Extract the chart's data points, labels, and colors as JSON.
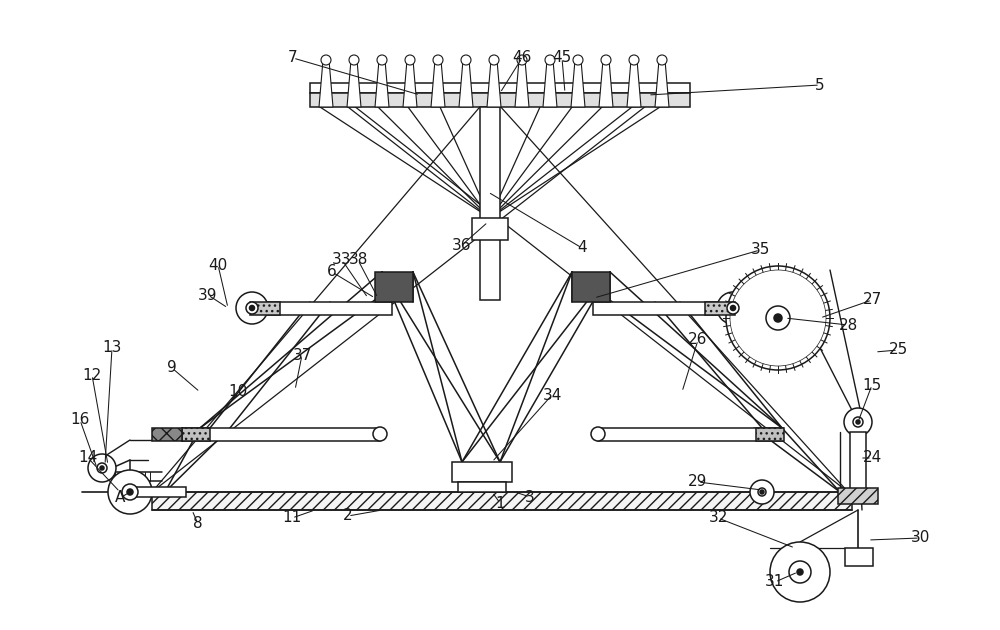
{
  "bg": "#ffffff",
  "lc": "#1a1a1a",
  "lw": 1.1,
  "fw": 10.0,
  "fh": 6.3,
  "dpi": 100,
  "labels": [
    [
      "1",
      500,
      503
    ],
    [
      "2",
      348,
      516
    ],
    [
      "3",
      530,
      497
    ],
    [
      "4",
      582,
      248
    ],
    [
      "5",
      820,
      85
    ],
    [
      "6",
      332,
      272
    ],
    [
      "7",
      293,
      58
    ],
    [
      "8",
      198,
      524
    ],
    [
      "9",
      172,
      368
    ],
    [
      "10",
      238,
      392
    ],
    [
      "11",
      292,
      518
    ],
    [
      "12",
      92,
      375
    ],
    [
      "13",
      112,
      348
    ],
    [
      "14",
      88,
      458
    ],
    [
      "15",
      872,
      385
    ],
    [
      "16",
      80,
      420
    ],
    [
      "24",
      872,
      458
    ],
    [
      "25",
      898,
      350
    ],
    [
      "26",
      698,
      340
    ],
    [
      "27",
      872,
      300
    ],
    [
      "28",
      848,
      325
    ],
    [
      "29",
      698,
      482
    ],
    [
      "30",
      920,
      538
    ],
    [
      "31",
      775,
      582
    ],
    [
      "32",
      718,
      518
    ],
    [
      "33",
      342,
      260
    ],
    [
      "34",
      552,
      395
    ],
    [
      "35",
      760,
      250
    ],
    [
      "36",
      462,
      245
    ],
    [
      "37",
      302,
      355
    ],
    [
      "38",
      358,
      260
    ],
    [
      "39",
      208,
      295
    ],
    [
      "40",
      218,
      265
    ],
    [
      "45",
      562,
      58
    ],
    [
      "46",
      522,
      58
    ],
    [
      "A",
      120,
      498
    ]
  ],
  "leaders": [
    [
      [
        293,
        58
      ],
      [
        420,
        95
      ]
    ],
    [
      [
        820,
        85
      ],
      [
        648,
        95
      ]
    ],
    [
      [
        562,
        58
      ],
      [
        565,
        93
      ]
    ],
    [
      [
        522,
        58
      ],
      [
        500,
        93
      ]
    ],
    [
      [
        582,
        248
      ],
      [
        488,
        192
      ]
    ],
    [
      [
        462,
        245
      ],
      [
        488,
        222
      ]
    ],
    [
      [
        332,
        272
      ],
      [
        375,
        298
      ]
    ],
    [
      [
        342,
        260
      ],
      [
        368,
        298
      ]
    ],
    [
      [
        358,
        260
      ],
      [
        378,
        298
      ]
    ],
    [
      [
        760,
        250
      ],
      [
        594,
        298
      ]
    ],
    [
      [
        208,
        295
      ],
      [
        228,
        308
      ]
    ],
    [
      [
        218,
        265
      ],
      [
        228,
        308
      ]
    ],
    [
      [
        172,
        368
      ],
      [
        200,
        392
      ]
    ],
    [
      [
        238,
        392
      ],
      [
        230,
        402
      ]
    ],
    [
      [
        302,
        355
      ],
      [
        295,
        390
      ]
    ],
    [
      [
        698,
        340
      ],
      [
        682,
        392
      ]
    ],
    [
      [
        872,
        300
      ],
      [
        820,
        318
      ]
    ],
    [
      [
        848,
        325
      ],
      [
        785,
        318
      ]
    ],
    [
      [
        872,
        385
      ],
      [
        858,
        422
      ]
    ],
    [
      [
        872,
        458
      ],
      [
        860,
        458
      ]
    ],
    [
      [
        898,
        350
      ],
      [
        875,
        352
      ]
    ],
    [
      [
        698,
        482
      ],
      [
        762,
        490
      ]
    ],
    [
      [
        718,
        518
      ],
      [
        795,
        548
      ]
    ],
    [
      [
        775,
        582
      ],
      [
        798,
        572
      ]
    ],
    [
      [
        920,
        538
      ],
      [
        868,
        540
      ]
    ],
    [
      [
        552,
        395
      ],
      [
        492,
        462
      ]
    ],
    [
      [
        500,
        503
      ],
      [
        492,
        492
      ]
    ],
    [
      [
        348,
        516
      ],
      [
        382,
        510
      ]
    ],
    [
      [
        530,
        497
      ],
      [
        515,
        492
      ]
    ],
    [
      [
        198,
        524
      ],
      [
        192,
        510
      ]
    ],
    [
      [
        292,
        518
      ],
      [
        315,
        510
      ]
    ],
    [
      [
        92,
        375
      ],
      [
        108,
        465
      ]
    ],
    [
      [
        112,
        348
      ],
      [
        105,
        465
      ]
    ],
    [
      [
        88,
        458
      ],
      [
        120,
        492
      ]
    ],
    [
      [
        80,
        420
      ],
      [
        97,
        468
      ]
    ],
    [
      [
        120,
        498
      ],
      [
        130,
        492
      ]
    ]
  ]
}
